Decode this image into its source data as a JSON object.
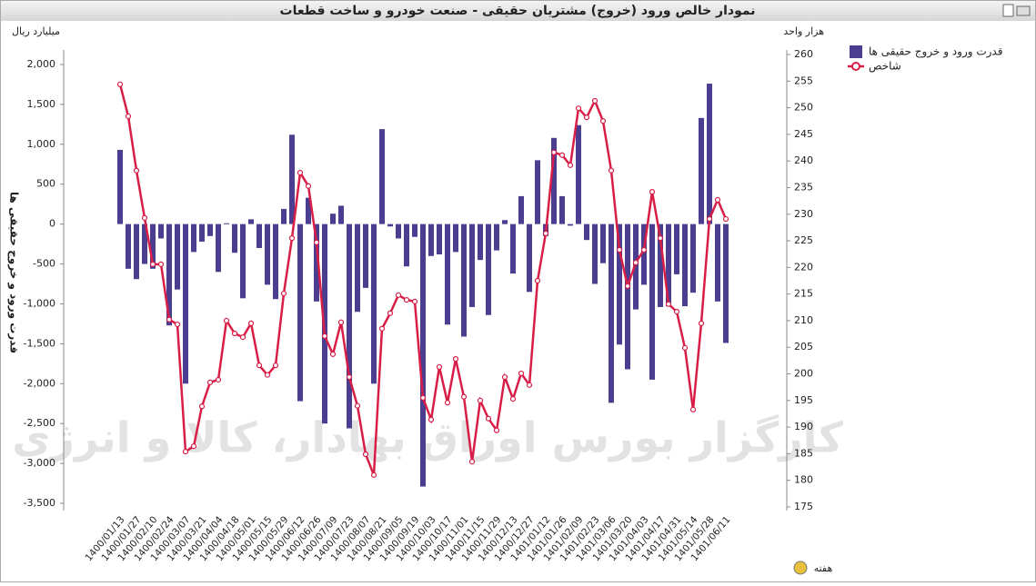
{
  "chart_data": {
    "type": "bar_line",
    "title": "نمودار خالص ورود (خروج) مشتریان حقیقی - صنعت خودرو و ساخت قطعات",
    "y_unit": "میلیارد ریال",
    "y2_unit": "هزار واحد",
    "ylabel": "قدرت ورود و خروج حقیقی ها",
    "xlabel": "هفته",
    "watermark": "کارگزار بورس اوراق بهادار، کالا و انرژی",
    "categories": [
      "1400/01/13",
      null,
      "1400/01/27",
      null,
      "1400/02/10",
      null,
      "1400/02/24",
      null,
      "1400/03/07",
      null,
      "1400/03/21",
      null,
      "1400/04/04",
      null,
      "1400/04/18",
      null,
      "1400/05/01",
      null,
      "1400/05/15",
      null,
      "1400/05/29",
      null,
      "1400/06/12",
      null,
      "1400/06/26",
      null,
      "1400/07/09",
      null,
      "1400/07/23",
      null,
      "1400/08/07",
      null,
      "1400/08/21",
      null,
      "1400/09/05",
      null,
      "1400/09/19",
      null,
      "1400/10/03",
      null,
      "1400/10/17",
      null,
      "1400/11/01",
      null,
      "1400/11/15",
      null,
      "1400/11/29",
      null,
      "1400/12/13",
      null,
      "1400/12/27",
      null,
      "1401/01/12",
      null,
      "1401/01/26",
      null,
      "1401/02/09",
      null,
      "1401/02/23",
      null,
      "1401/03/06",
      null,
      "1401/03/20",
      null,
      "1401/04/03",
      null,
      "1401/04/17",
      null,
      "1401/04/31",
      null,
      "1401/05/14",
      null,
      "1401/05/28",
      null,
      "1401/06/11"
    ],
    "series": [
      {
        "name": "قدرت ورود و خروج حقیقی ها",
        "color": "#4b3d8f",
        "kind": "bar",
        "values": [
          930,
          -560,
          -690,
          -500,
          -560,
          -180,
          -1270,
          -820,
          -2000,
          -350,
          -220,
          -150,
          -600,
          10,
          -360,
          -930,
          60,
          -300,
          -760,
          -940,
          190,
          1120,
          -2220,
          330,
          -970,
          -2500,
          130,
          230,
          -2560,
          -1100,
          -800,
          -2000,
          1190,
          -30,
          -180,
          -530,
          -160,
          -3290,
          -400,
          -380,
          -1260,
          -350,
          -1410,
          -1040,
          -450,
          -1140,
          -330,
          50,
          -620,
          350,
          -850,
          800,
          -150,
          1080,
          350,
          -20,
          1240,
          -200,
          -750,
          -490,
          -2240,
          -1510,
          -1820,
          -1070,
          -760,
          -1950,
          -1040,
          -1030,
          -630,
          -1030,
          -860,
          1330,
          1760,
          -970,
          -1490
        ]
      },
      {
        "name": "شاخص",
        "color": "#d81e47",
        "kind": "line",
        "axis": "y2",
        "values": [
          254.4,
          248.4,
          238.2,
          229.3,
          220.6,
          220.6,
          210.2,
          209.3,
          185.4,
          186.4,
          193.9,
          198.4,
          198.9,
          210,
          207.6,
          206.9,
          209.5,
          201.6,
          199.8,
          201.6,
          215.1,
          225.5,
          237.8,
          235.3,
          224.7,
          207.1,
          203.7,
          209.7,
          199.4,
          194,
          184.9,
          181,
          208.5,
          211.4,
          214.8,
          213.9,
          213.6,
          195.5,
          191.4,
          201.3,
          194.6,
          202.8,
          195.7,
          183.5,
          195,
          191.6,
          189.4,
          199.4,
          195.3,
          200.1,
          197.9,
          217.5,
          226.4,
          241.6,
          241.1,
          239.2,
          249.9,
          248.2,
          251.3,
          247.5,
          238.2,
          223.3,
          216.5,
          220.9,
          223.3,
          234.2,
          225.5,
          213.1,
          211.7,
          204.9,
          193.3,
          209.5,
          229.1,
          232.7,
          229.1
        ]
      }
    ],
    "ylim": [
      -3500,
      2000
    ],
    "yticks": [
      {
        "value": 2000,
        "label": "2,000"
      },
      {
        "value": 1500,
        "label": "1,500"
      },
      {
        "value": 1000,
        "label": "1,000"
      },
      500,
      0,
      -500,
      {
        "value": -1000,
        "label": "-1,000"
      },
      {
        "value": -1500,
        "label": "-1,500"
      },
      {
        "value": -2000,
        "label": "-2,000"
      },
      {
        "value": -2500,
        "label": "-2,500"
      },
      {
        "value": -3000,
        "label": "-3,000"
      },
      {
        "value": -3500,
        "label": "-3,500"
      }
    ],
    "y2lim": [
      175,
      260
    ],
    "y2ticks": [
      175,
      180,
      185,
      190,
      195,
      200,
      205,
      210,
      215,
      220,
      225,
      230,
      235,
      240,
      245,
      250,
      255,
      260
    ],
    "grid": false,
    "legend": "top-right"
  }
}
